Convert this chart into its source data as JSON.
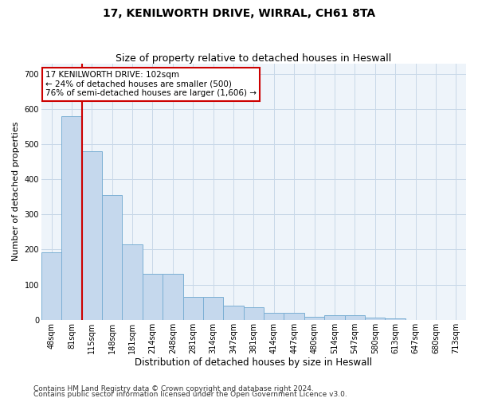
{
  "title": "17, KENILWORTH DRIVE, WIRRAL, CH61 8TA",
  "subtitle": "Size of property relative to detached houses in Heswall",
  "xlabel": "Distribution of detached houses by size in Heswall",
  "ylabel": "Number of detached properties",
  "categories": [
    "48sqm",
    "81sqm",
    "115sqm",
    "148sqm",
    "181sqm",
    "214sqm",
    "248sqm",
    "281sqm",
    "314sqm",
    "347sqm",
    "381sqm",
    "414sqm",
    "447sqm",
    "480sqm",
    "514sqm",
    "547sqm",
    "580sqm",
    "613sqm",
    "647sqm",
    "680sqm",
    "713sqm"
  ],
  "values": [
    193,
    580,
    480,
    355,
    215,
    130,
    130,
    65,
    65,
    40,
    35,
    20,
    20,
    8,
    12,
    12,
    7,
    3,
    0,
    0,
    0
  ],
  "bar_color": "#c5d8ed",
  "bar_edge_color": "#7bafd4",
  "vline_x": 1.5,
  "vline_color": "#cc0000",
  "annotation_text": "17 KENILWORTH DRIVE: 102sqm\n← 24% of detached houses are smaller (500)\n76% of semi-detached houses are larger (1,606) →",
  "annotation_box_facecolor": "white",
  "annotation_box_edgecolor": "#cc0000",
  "ylim": [
    0,
    730
  ],
  "yticks": [
    0,
    100,
    200,
    300,
    400,
    500,
    600,
    700
  ],
  "grid_color": "#c8d8e8",
  "background_color": "#eef4fa",
  "footer_line1": "Contains HM Land Registry data © Crown copyright and database right 2024.",
  "footer_line2": "Contains public sector information licensed under the Open Government Licence v3.0.",
  "title_fontsize": 10,
  "subtitle_fontsize": 9,
  "xlabel_fontsize": 8.5,
  "ylabel_fontsize": 8,
  "tick_fontsize": 7,
  "annotation_fontsize": 7.5,
  "footer_fontsize": 6.5
}
